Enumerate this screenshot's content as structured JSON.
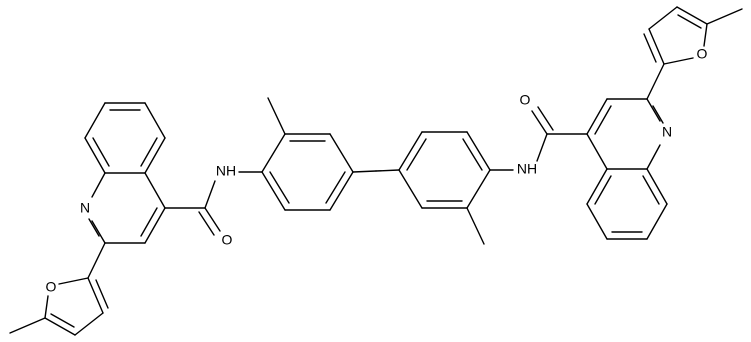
{
  "atoms": [
    "N",
    "O",
    "NH",
    "O",
    "NH",
    "O",
    "N",
    "O"
  ]
}
